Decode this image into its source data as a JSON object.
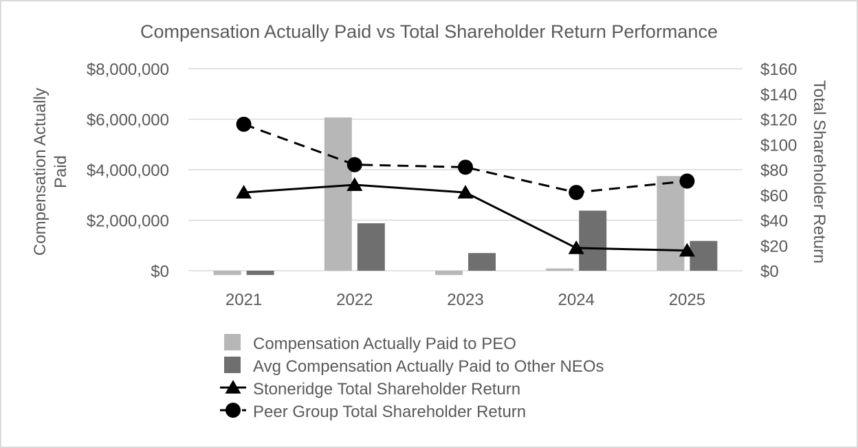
{
  "chart_data": {
    "type": "bar",
    "title": "Compensation Actually Paid vs Total Shareholder Return Performance",
    "categories": [
      "2021",
      "2022",
      "2023",
      "2024",
      "2025"
    ],
    "ylabel_left": "Compensation Actually Paid",
    "ylabel_right": "Total Shareholder Return",
    "ylim_left": [
      0,
      8000000
    ],
    "ylim_right": [
      0,
      160
    ],
    "yticks_left": [
      "$0",
      "$2,000,000",
      "$4,000,000",
      "$6,000,000",
      "$8,000,000"
    ],
    "yticks_right": [
      "$0",
      "$20",
      "$40",
      "$60",
      "$80",
      "$100",
      "$120",
      "$140",
      "$160"
    ],
    "grid": true,
    "legend_position": "bottom",
    "series": [
      {
        "name": "Compensation Actually Paid to PEO",
        "type": "bar",
        "axis": "left",
        "color": "#b7b7b7",
        "values": [
          -170000,
          6070000,
          -170000,
          90000,
          3750000
        ]
      },
      {
        "name": "Avg Compensation Actually Paid to Other NEOs",
        "type": "bar",
        "axis": "left",
        "color": "#6f6f6f",
        "values": [
          -170000,
          1880000,
          700000,
          2380000,
          1180000
        ]
      },
      {
        "name": "Stoneridge Total Shareholder Return",
        "type": "line",
        "axis": "right",
        "color": "#000000",
        "marker": "triangle",
        "line_style": "solid",
        "values": [
          62,
          68,
          62,
          18,
          16
        ]
      },
      {
        "name": "Peer Group Total Shareholder Return",
        "type": "line",
        "axis": "right",
        "color": "#000000",
        "marker": "circle",
        "line_style": "dashed",
        "values": [
          116,
          84,
          82,
          62,
          71
        ]
      }
    ]
  }
}
